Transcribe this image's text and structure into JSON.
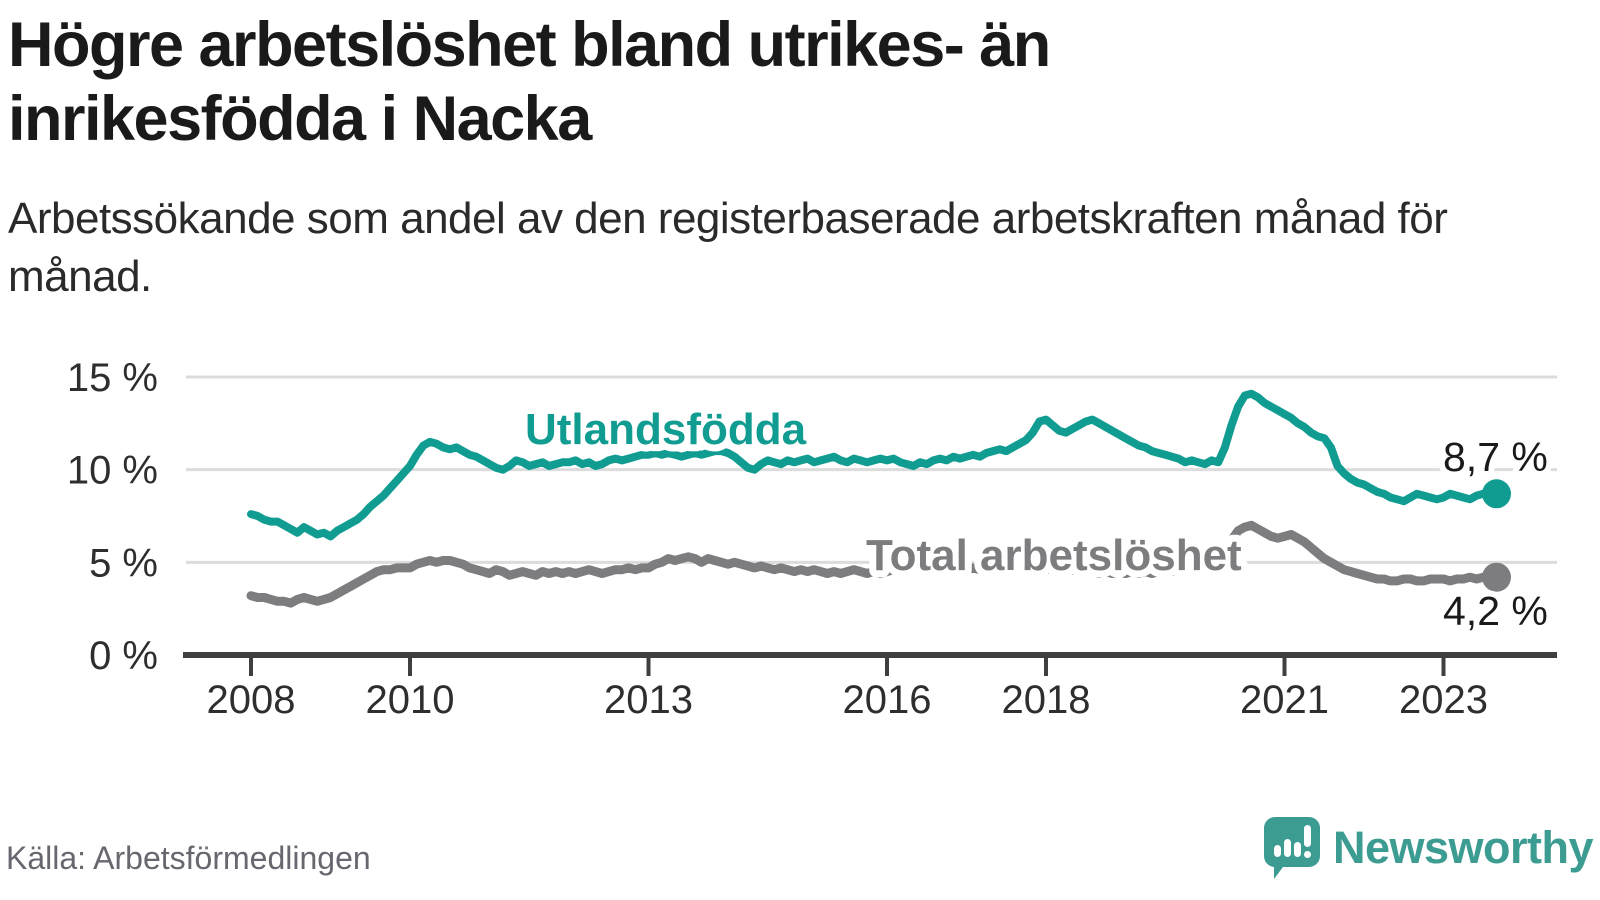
{
  "title": {
    "line1": "Högre arbetslöshet bland utrikes- än",
    "line2": "inrikesfödda i Nacka"
  },
  "subtitle": "Arbetssökande som andel av den registerbaserade arbetskraften månad för månad.",
  "source": "Källa: Arbetsförmedlingen",
  "brand": {
    "name": "Newsworthy",
    "icon": "newsworthy-speech-bubble-chart-icon",
    "color": "#3d9c92"
  },
  "colors": {
    "series_foreign_born": "#119c92",
    "series_total": "#7d7d80",
    "gridline": "#dcdcdc",
    "axis": "#3f3f3f",
    "tick_text": "#2e2e2e",
    "title_text": "#1a1a1a"
  },
  "chart_data": {
    "type": "line",
    "title": "Högre arbetslöshet bland utrikes- än inrikesfödda i Nacka",
    "subtitle": "Arbetssökande som andel av den registerbaserade arbetskraften månad för månad.",
    "unit": "%",
    "frequency": "monthly",
    "x_start": "2008-01",
    "x_end": "2023-09",
    "x_tick_labels": [
      "2008",
      "2010",
      "2013",
      "2016",
      "2018",
      "2021",
      "2023"
    ],
    "y_tick_labels": [
      "0 %",
      "5 %",
      "10 %",
      "15 %"
    ],
    "y_tick_values": [
      0,
      5,
      10,
      15
    ],
    "ylim": [
      0,
      15
    ],
    "grid": "horizontal",
    "legend_position": "inline-labels",
    "series": [
      {
        "name": "Utlandsfödda",
        "color": "#119c92",
        "end_label": "8,7 %",
        "end_value": 8.7,
        "values": [
          7.6,
          7.5,
          7.3,
          7.2,
          7.2,
          7.0,
          6.8,
          6.6,
          6.9,
          6.7,
          6.5,
          6.6,
          6.4,
          6.7,
          6.9,
          7.1,
          7.3,
          7.6,
          8.0,
          8.3,
          8.6,
          9.0,
          9.4,
          9.8,
          10.2,
          10.8,
          11.3,
          11.5,
          11.4,
          11.2,
          11.1,
          11.2,
          11.0,
          10.8,
          10.7,
          10.5,
          10.3,
          10.1,
          10.0,
          10.2,
          10.5,
          10.4,
          10.2,
          10.3,
          10.4,
          10.2,
          10.3,
          10.4,
          10.4,
          10.5,
          10.3,
          10.4,
          10.2,
          10.3,
          10.5,
          10.6,
          10.5,
          10.6,
          10.7,
          10.8,
          10.8,
          10.9,
          10.8,
          10.9,
          10.8,
          10.7,
          10.8,
          10.9,
          10.8,
          10.9,
          11.0,
          11.0,
          10.9,
          10.7,
          10.4,
          10.1,
          10.0,
          10.3,
          10.5,
          10.4,
          10.3,
          10.5,
          10.4,
          10.5,
          10.6,
          10.4,
          10.5,
          10.6,
          10.7,
          10.5,
          10.4,
          10.6,
          10.5,
          10.4,
          10.5,
          10.6,
          10.5,
          10.6,
          10.4,
          10.3,
          10.2,
          10.4,
          10.3,
          10.5,
          10.6,
          10.5,
          10.7,
          10.6,
          10.7,
          10.8,
          10.7,
          10.9,
          11.0,
          11.1,
          11.0,
          11.2,
          11.4,
          11.6,
          12.0,
          12.6,
          12.7,
          12.4,
          12.1,
          12.0,
          12.2,
          12.4,
          12.6,
          12.7,
          12.5,
          12.3,
          12.1,
          11.9,
          11.7,
          11.5,
          11.3,
          11.2,
          11.0,
          10.9,
          10.8,
          10.7,
          10.6,
          10.4,
          10.5,
          10.4,
          10.3,
          10.5,
          10.4,
          11.2,
          12.4,
          13.4,
          14.0,
          14.1,
          13.9,
          13.6,
          13.4,
          13.2,
          13.0,
          12.8,
          12.5,
          12.3,
          12.0,
          11.8,
          11.7,
          11.2,
          10.2,
          9.8,
          9.5,
          9.3,
          9.2,
          9.0,
          8.8,
          8.7,
          8.5,
          8.4,
          8.3,
          8.5,
          8.7,
          8.6,
          8.5,
          8.4,
          8.5,
          8.7,
          8.6,
          8.5,
          8.4,
          8.6,
          8.7,
          8.6,
          8.7
        ]
      },
      {
        "name": "Total arbetslöshet",
        "color": "#7d7d80",
        "end_label": "4,2 %",
        "end_value": 4.2,
        "values": [
          3.2,
          3.1,
          3.1,
          3.0,
          2.9,
          2.9,
          2.8,
          3.0,
          3.1,
          3.0,
          2.9,
          3.0,
          3.1,
          3.3,
          3.5,
          3.7,
          3.9,
          4.1,
          4.3,
          4.5,
          4.6,
          4.6,
          4.7,
          4.7,
          4.7,
          4.9,
          5.0,
          5.1,
          5.0,
          5.1,
          5.1,
          5.0,
          4.9,
          4.7,
          4.6,
          4.5,
          4.4,
          4.6,
          4.5,
          4.3,
          4.4,
          4.5,
          4.4,
          4.3,
          4.5,
          4.4,
          4.5,
          4.4,
          4.5,
          4.4,
          4.5,
          4.6,
          4.5,
          4.4,
          4.5,
          4.6,
          4.6,
          4.7,
          4.6,
          4.7,
          4.7,
          4.9,
          5.0,
          5.2,
          5.1,
          5.2,
          5.3,
          5.2,
          5.0,
          5.2,
          5.1,
          5.0,
          4.9,
          5.0,
          4.9,
          4.8,
          4.7,
          4.8,
          4.7,
          4.6,
          4.7,
          4.6,
          4.5,
          4.6,
          4.5,
          4.6,
          4.5,
          4.4,
          4.5,
          4.4,
          4.5,
          4.6,
          4.5,
          4.4,
          4.5,
          4.4,
          4.5,
          4.6,
          4.5,
          4.6,
          4.7,
          4.6,
          4.5,
          4.6,
          4.5,
          4.6,
          4.7,
          4.6,
          4.6,
          4.7,
          4.6,
          4.7,
          4.6,
          4.7,
          4.8,
          4.7,
          4.7,
          4.8,
          4.7,
          4.7,
          4.6,
          4.7,
          4.6,
          4.5,
          4.6,
          4.5,
          4.6,
          4.5,
          4.4,
          4.5,
          4.4,
          4.5,
          4.4,
          4.5,
          4.4,
          4.5,
          4.4,
          4.5,
          4.6,
          4.5,
          4.6,
          4.5,
          4.6,
          4.7,
          4.8,
          4.9,
          5.1,
          5.6,
          6.2,
          6.7,
          6.9,
          7.0,
          6.8,
          6.6,
          6.4,
          6.3,
          6.4,
          6.5,
          6.3,
          6.1,
          5.8,
          5.5,
          5.2,
          5.0,
          4.8,
          4.6,
          4.5,
          4.4,
          4.3,
          4.2,
          4.1,
          4.1,
          4.0,
          4.0,
          4.1,
          4.1,
          4.0,
          4.0,
          4.1,
          4.1,
          4.1,
          4.0,
          4.1,
          4.1,
          4.2,
          4.1,
          4.2,
          4.3,
          4.2
        ]
      }
    ]
  }
}
